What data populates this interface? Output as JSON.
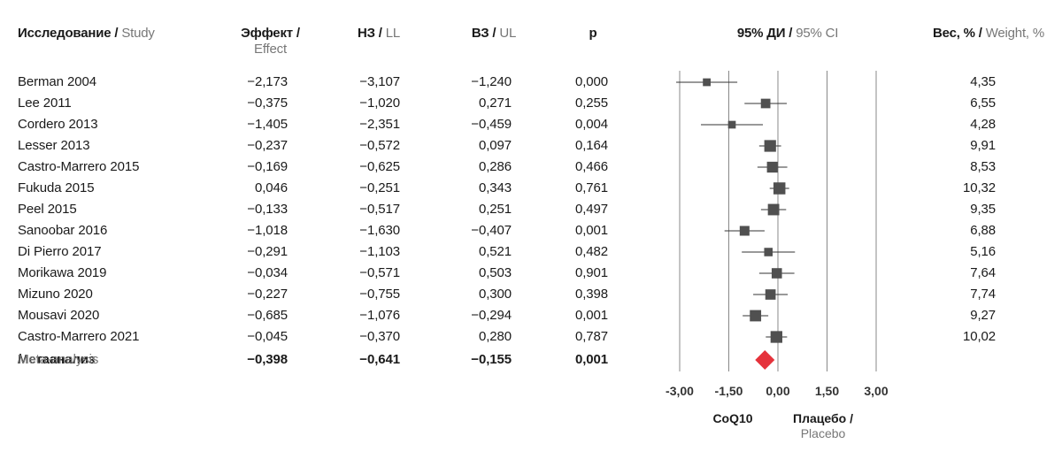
{
  "header": {
    "study_ru": "Исследование",
    "study_en": "Study",
    "effect_ru": "Эффект /",
    "effect_en": "Effect",
    "ll_ru": "НЗ",
    "ll_en": "LL",
    "ul_ru": "ВЗ",
    "ul_en": "UL",
    "p": "p",
    "ci_ru": "95% ДИ",
    "ci_en": "95% CI",
    "weight_ru": "Вес, %",
    "weight_en": "Weight, %",
    "sep": " / "
  },
  "rows": [
    {
      "study": "Berman 2004",
      "effect": "−2,173",
      "ll": "−3,107",
      "ul": "−1,240",
      "p": "0,000",
      "weight": "4,35"
    },
    {
      "study": "Lee 2011",
      "effect": "−0,375",
      "ll": "−1,020",
      "ul": "0,271",
      "p": "0,255",
      "weight": "6,55"
    },
    {
      "study": "Cordero 2013",
      "effect": "−1,405",
      "ll": "−2,351",
      "ul": "−0,459",
      "p": "0,004",
      "weight": "4,28"
    },
    {
      "study": "Lesser 2013",
      "effect": "−0,237",
      "ll": "−0,572",
      "ul": "0,097",
      "p": "0,164",
      "weight": "9,91"
    },
    {
      "study": "Castro-Marrero 2015",
      "effect": "−0,169",
      "ll": "−0,625",
      "ul": "0,286",
      "p": "0,466",
      "weight": "8,53"
    },
    {
      "study": "Fukuda 2015",
      "effect": "0,046",
      "ll": "−0,251",
      "ul": "0,343",
      "p": "0,761",
      "weight": "10,32"
    },
    {
      "study": "Peel 2015",
      "effect": "−0,133",
      "ll": "−0,517",
      "ul": "0,251",
      "p": "0,497",
      "weight": "9,35"
    },
    {
      "study": "Sanoobar 2016",
      "effect": "−1,018",
      "ll": "−1,630",
      "ul": "−0,407",
      "p": "0,001",
      "weight": "6,88"
    },
    {
      "study": "Di Pierro 2017",
      "effect": "−0,291",
      "ll": "−1,103",
      "ul": "0,521",
      "p": "0,482",
      "weight": "5,16"
    },
    {
      "study": "Morikawa 2019",
      "effect": "−0,034",
      "ll": "−0,571",
      "ul": "0,503",
      "p": "0,901",
      "weight": "7,64"
    },
    {
      "study": "Mizuno 2020",
      "effect": "−0,227",
      "ll": "−0,755",
      "ul": "0,300",
      "p": "0,398",
      "weight": "7,74"
    },
    {
      "study": "Mousavi 2020",
      "effect": "−0,685",
      "ll": "−1,076",
      "ul": "−0,294",
      "p": "0,001",
      "weight": "9,27"
    },
    {
      "study": "Castro-Marrero 2021",
      "effect": "−0,045",
      "ll": "−0,370",
      "ul": "0,280",
      "p": "0,787",
      "weight": "10,02"
    }
  ],
  "total": {
    "study_ru": "Метаанализ",
    "study_en": "Meta-analysis",
    "effect": "−0,398",
    "ll": "−0,641",
    "ul": "−0,155",
    "p": "0,001"
  },
  "footer": {
    "left_label": "CoQ10",
    "right_label_ru": "Плацебо /",
    "right_label_en": "Placebo"
  },
  "chart_data": {
    "type": "forest",
    "xlim": [
      -3,
      3
    ],
    "xticks": [
      -3,
      -1.5,
      0,
      1.5,
      3
    ],
    "xtick_labels": [
      "-3,00",
      "-1,50",
      "0,00",
      "1,50",
      "3,00"
    ],
    "grid": true,
    "colors": {
      "study": "#505050",
      "summary": "#e5323b",
      "axis": "#888888"
    },
    "studies": [
      {
        "name": "Berman 2004",
        "effect": -2.173,
        "ll": -3.107,
        "ul": -1.24,
        "weight": 4.35
      },
      {
        "name": "Lee 2011",
        "effect": -0.375,
        "ll": -1.02,
        "ul": 0.271,
        "weight": 6.55
      },
      {
        "name": "Cordero 2013",
        "effect": -1.405,
        "ll": -2.351,
        "ul": -0.459,
        "weight": 4.28
      },
      {
        "name": "Lesser 2013",
        "effect": -0.237,
        "ll": -0.572,
        "ul": 0.097,
        "weight": 9.91
      },
      {
        "name": "Castro-Marrero 2015",
        "effect": -0.169,
        "ll": -0.625,
        "ul": 0.286,
        "weight": 8.53
      },
      {
        "name": "Fukuda 2015",
        "effect": 0.046,
        "ll": -0.251,
        "ul": 0.343,
        "weight": 10.32
      },
      {
        "name": "Peel 2015",
        "effect": -0.133,
        "ll": -0.517,
        "ul": 0.251,
        "weight": 9.35
      },
      {
        "name": "Sanoobar 2016",
        "effect": -1.018,
        "ll": -1.63,
        "ul": -0.407,
        "weight": 6.88
      },
      {
        "name": "Di Pierro 2017",
        "effect": -0.291,
        "ll": -1.103,
        "ul": 0.521,
        "weight": 5.16
      },
      {
        "name": "Morikawa 2019",
        "effect": -0.034,
        "ll": -0.571,
        "ul": 0.503,
        "weight": 7.64
      },
      {
        "name": "Mizuno 2020",
        "effect": -0.227,
        "ll": -0.755,
        "ul": 0.3,
        "weight": 7.74
      },
      {
        "name": "Mousavi 2020",
        "effect": -0.685,
        "ll": -1.076,
        "ul": -0.294,
        "weight": 9.27
      },
      {
        "name": "Castro-Marrero 2021",
        "effect": -0.045,
        "ll": -0.37,
        "ul": 0.28,
        "weight": 10.02
      }
    ],
    "summary": {
      "name": "Meta-analysis",
      "effect": -0.398,
      "ll": -0.641,
      "ul": -0.155
    }
  }
}
